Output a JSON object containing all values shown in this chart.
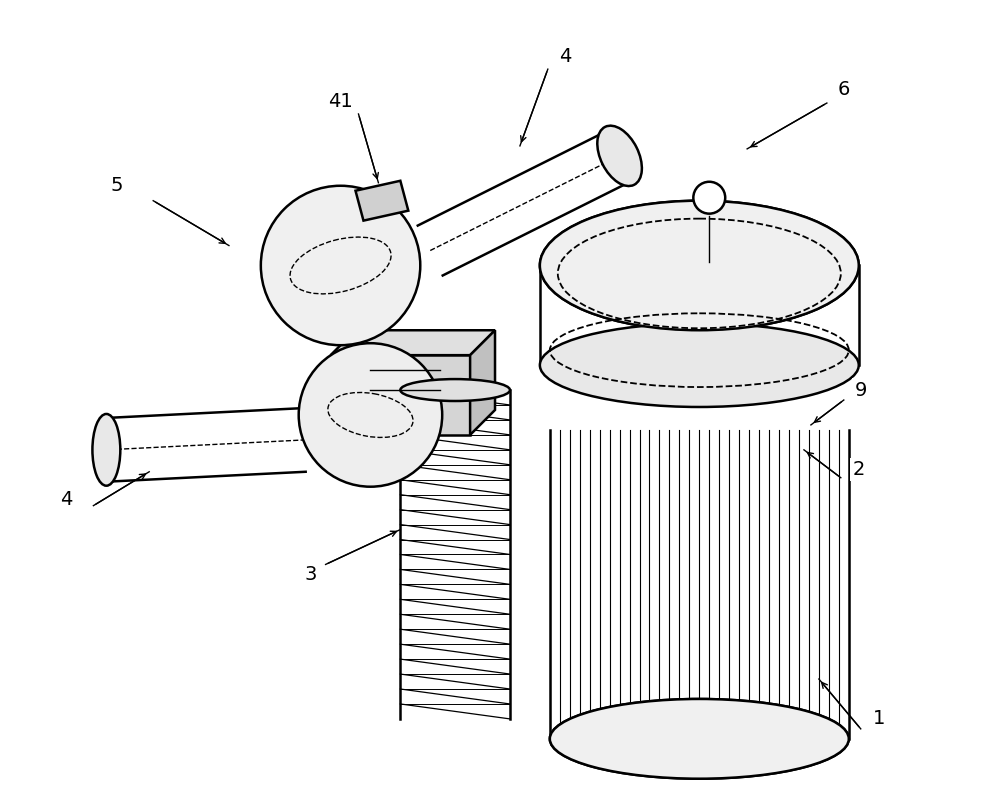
{
  "bg_color": "#ffffff",
  "line_color": "#000000",
  "figsize": [
    10.0,
    8.05
  ],
  "dpi": 100
}
